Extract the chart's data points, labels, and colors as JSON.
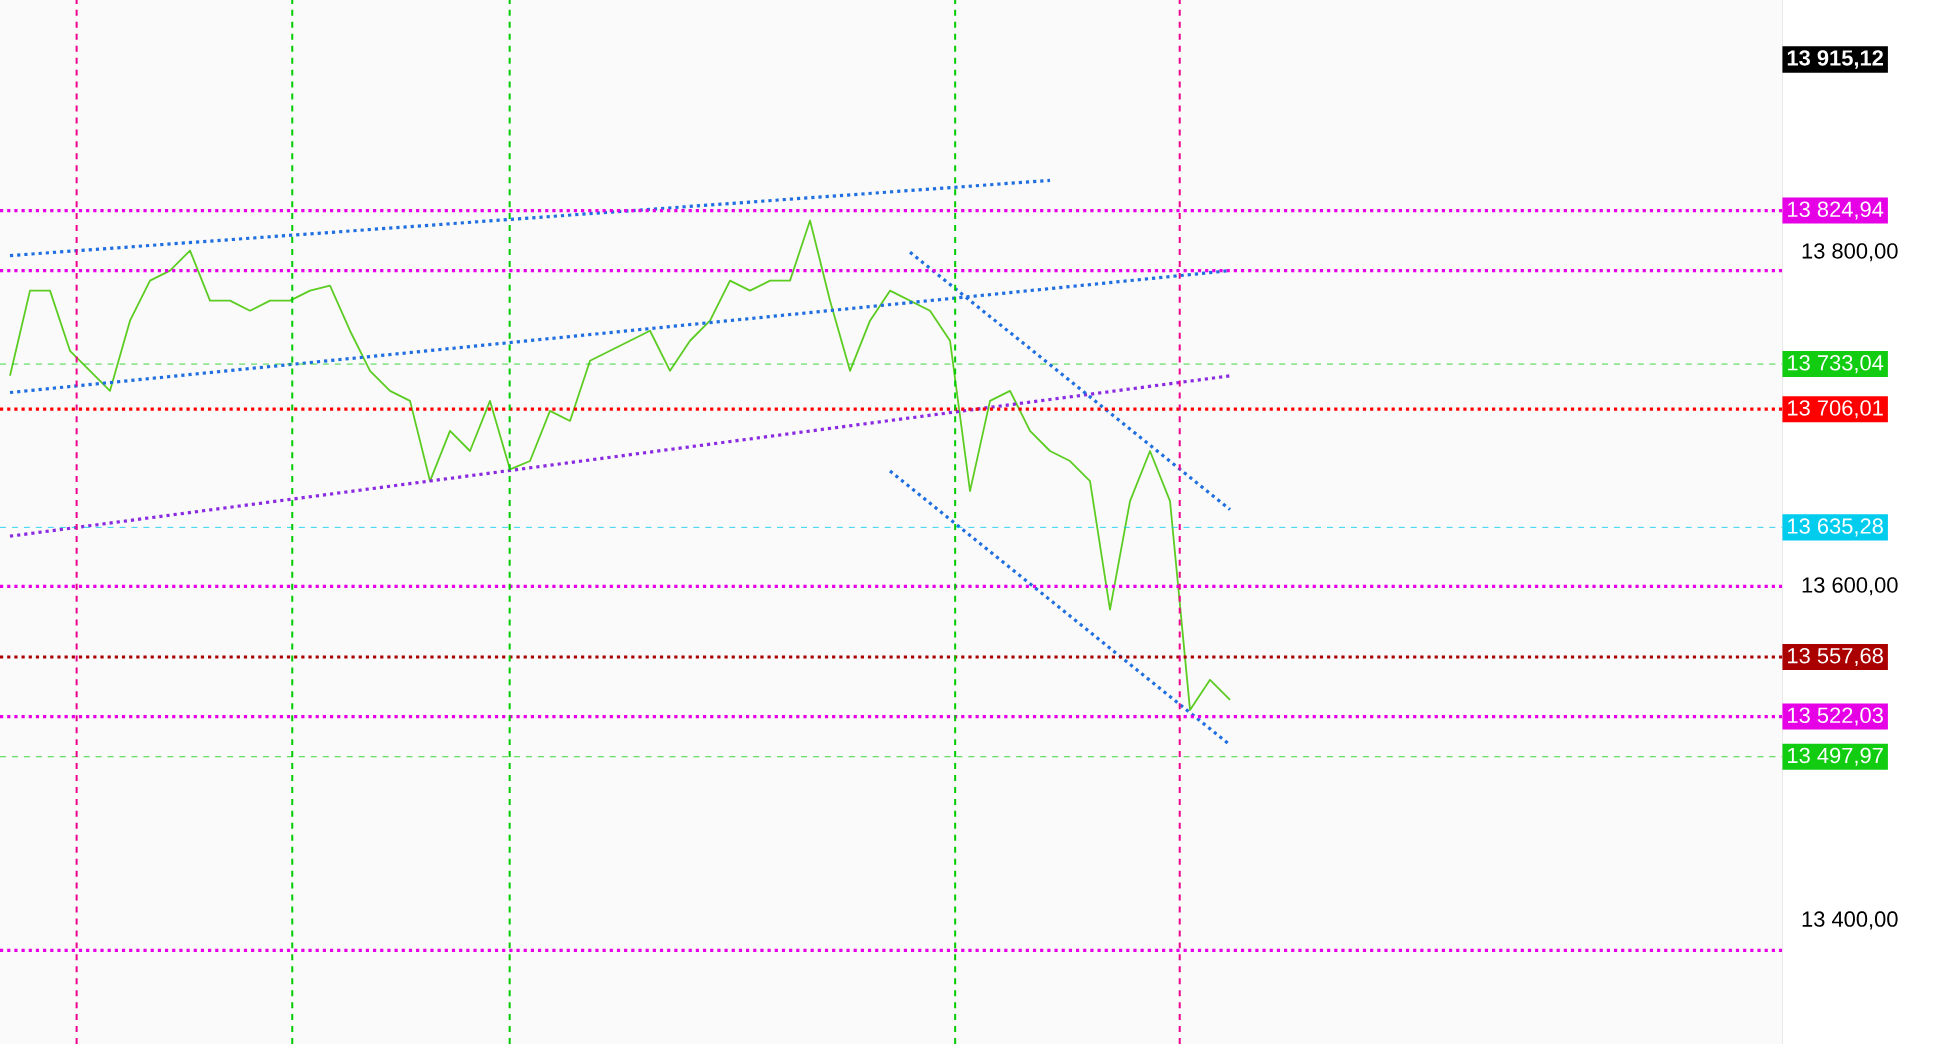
{
  "chart_data": {
    "type": "line",
    "categories": [
      null,
      null,
      null,
      null,
      null,
      null,
      null,
      null,
      null,
      null,
      null,
      null,
      null,
      null,
      null,
      null,
      null,
      null,
      null,
      null,
      null,
      null,
      null,
      null,
      null,
      null,
      null,
      null,
      null,
      null,
      null,
      null,
      null,
      null,
      null,
      null,
      null,
      null,
      null,
      null,
      null,
      null,
      null,
      null,
      null,
      null,
      null,
      null,
      null,
      null,
      null,
      null,
      null,
      null,
      null,
      null,
      null,
      null,
      null,
      null,
      null,
      null
    ],
    "series": [
      {
        "color": "#5ccc22",
        "values": [
          13726,
          13777,
          13777,
          13741,
          13729,
          13717,
          13759,
          13783,
          13789,
          13801,
          13771,
          13771,
          13765,
          13771,
          13771,
          13777,
          13780,
          13753,
          13729,
          13717,
          13711,
          13663,
          13693,
          13681,
          13711,
          13670,
          13675,
          13705,
          13699,
          13735,
          13741,
          13747,
          13753,
          13729,
          13747,
          13759,
          13783,
          13777,
          13783,
          13783,
          13819,
          13771,
          13729,
          13759,
          13777,
          13771,
          13765,
          13747,
          13657,
          13711,
          13717,
          13693,
          13681,
          13675,
          13663,
          13586,
          13651,
          13681,
          13651,
          13526,
          13544,
          13532
        ]
      },
      {
        "type": "line",
        "color": "#1f6fe0",
        "line_style": "dotted",
        "values": [
          13798,
          null,
          null,
          null,
          null,
          null,
          null,
          null,
          null,
          null,
          null,
          null,
          null,
          null,
          null,
          null,
          null,
          null,
          null,
          null,
          null,
          null,
          null,
          null,
          null,
          null,
          null,
          null,
          null,
          null,
          null,
          null,
          null,
          null,
          null,
          null,
          null,
          null,
          null,
          null,
          null,
          null,
          null,
          null,
          null,
          null,
          null,
          null,
          null,
          null,
          null,
          null,
          13843,
          null,
          null,
          null,
          null,
          null,
          null,
          null,
          null,
          null
        ]
      },
      {
        "type": "line",
        "color": "#1f6fe0",
        "line_style": "dotted",
        "values": [
          13716,
          null,
          null,
          null,
          null,
          null,
          null,
          null,
          null,
          null,
          null,
          null,
          null,
          null,
          null,
          null,
          null,
          null,
          null,
          null,
          null,
          null,
          null,
          null,
          null,
          null,
          null,
          null,
          null,
          null,
          null,
          null,
          null,
          null,
          null,
          null,
          null,
          null,
          null,
          null,
          null,
          null,
          null,
          null,
          null,
          null,
          null,
          null,
          null,
          null,
          null,
          null,
          null,
          null,
          null,
          null,
          null,
          null,
          null,
          null,
          null,
          13789
        ]
      },
      {
        "type": "line",
        "color": "#8a2be2",
        "line_style": "dotted",
        "values": [
          13630,
          null,
          null,
          null,
          null,
          null,
          null,
          null,
          null,
          null,
          null,
          null,
          null,
          null,
          null,
          null,
          null,
          null,
          null,
          null,
          null,
          null,
          null,
          null,
          null,
          null,
          null,
          null,
          null,
          null,
          null,
          null,
          null,
          null,
          null,
          null,
          null,
          null,
          null,
          null,
          null,
          null,
          null,
          null,
          null,
          null,
          null,
          null,
          null,
          null,
          null,
          null,
          null,
          null,
          null,
          null,
          null,
          null,
          null,
          null,
          null,
          13726
        ]
      },
      {
        "type": "line",
        "color": "#1f6fe0",
        "line_style": "dotted",
        "values": [
          null,
          null,
          null,
          null,
          null,
          null,
          null,
          null,
          null,
          null,
          null,
          null,
          null,
          null,
          null,
          null,
          null,
          null,
          null,
          null,
          null,
          null,
          null,
          null,
          null,
          null,
          null,
          null,
          null,
          null,
          null,
          null,
          null,
          null,
          null,
          null,
          null,
          null,
          null,
          null,
          null,
          null,
          null,
          null,
          null,
          13800,
          null,
          null,
          null,
          null,
          null,
          null,
          null,
          null,
          null,
          null,
          null,
          null,
          null,
          null,
          null,
          13646
        ]
      },
      {
        "type": "line",
        "color": "#1f6fe0",
        "line_style": "dotted",
        "values": [
          null,
          null,
          null,
          null,
          null,
          null,
          null,
          null,
          null,
          null,
          null,
          null,
          null,
          null,
          null,
          null,
          null,
          null,
          null,
          null,
          null,
          null,
          null,
          null,
          null,
          null,
          null,
          null,
          null,
          null,
          null,
          null,
          null,
          null,
          null,
          null,
          null,
          null,
          null,
          null,
          null,
          null,
          null,
          null,
          13669,
          null,
          null,
          null,
          null,
          null,
          null,
          null,
          null,
          null,
          null,
          null,
          null,
          null,
          null,
          null,
          null,
          13505
        ]
      }
    ],
    "ylim": [
      13326,
      13951
    ],
    "yticks": [
      {
        "value": 13400,
        "label": "13 400,00"
      },
      {
        "value": 13600,
        "label": "13 600,00"
      },
      {
        "value": 13800,
        "label": "13 800,00"
      }
    ],
    "ref_lines": [
      {
        "axis": "y",
        "value": 13824.94,
        "label": "13 824,94",
        "color": "#e600e6",
        "line_style": "dotted"
      },
      {
        "axis": "y",
        "value": 13733.04,
        "label": "13 733,04",
        "color": "#11cc11",
        "line_style": "dashed"
      },
      {
        "axis": "y",
        "value": 13706.01,
        "label": "13 706,01",
        "color": "#ff0000",
        "line_style": "dotted"
      },
      {
        "axis": "y",
        "value": 13635.28,
        "label": "13 635,28",
        "color": "#00ccee",
        "line_style": "dashed"
      },
      {
        "axis": "y",
        "value": 13557.68,
        "label": "13 557,68",
        "color": "#aa0000",
        "line_style": "dotted"
      },
      {
        "axis": "y",
        "value": 13522.03,
        "label": "13 522,03",
        "color": "#e600e6",
        "line_style": "dotted"
      },
      {
        "axis": "y",
        "value": 13497.97,
        "label": "13 497,97",
        "color": "#11cc11",
        "line_style": "dashed"
      },
      {
        "axis": "y",
        "value": 13789,
        "color": "#e600e6",
        "line_style": "dotted"
      },
      {
        "axis": "y",
        "value": 13600,
        "color": "#e600e6",
        "line_style": "dotted"
      },
      {
        "axis": "y",
        "value": 13382,
        "color": "#e600e6",
        "line_style": "dotted"
      }
    ],
    "annotations": [
      "13 915,12"
    ],
    "tick_labels": "y",
    "grid": false,
    "marker": "none"
  }
}
